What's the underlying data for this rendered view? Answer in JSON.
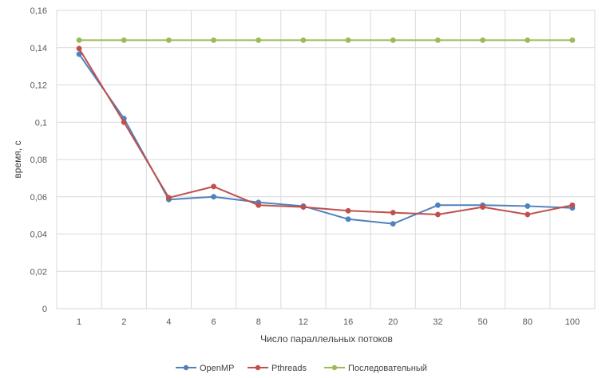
{
  "chart_data": {
    "type": "line",
    "title": "",
    "xlabel": "Число параллельных потоков",
    "ylabel": "время, с",
    "categories": [
      "1",
      "2",
      "4",
      "6",
      "8",
      "12",
      "16",
      "20",
      "32",
      "50",
      "80",
      "100"
    ],
    "ylim": [
      0,
      0.16
    ],
    "yticks": [
      0,
      0.02,
      0.04,
      0.06,
      0.08,
      0.1,
      0.12,
      0.14,
      0.16
    ],
    "ytick_labels": [
      "0",
      "0,02",
      "0,04",
      "0,06",
      "0,08",
      "0,1",
      "0,12",
      "0,14",
      "0,16"
    ],
    "grid": true,
    "legend_position": "bottom",
    "series": [
      {
        "name": "OpenMP",
        "color": "#4f81bd",
        "values": [
          0.1365,
          0.102,
          0.0585,
          0.06,
          0.057,
          0.055,
          0.048,
          0.0455,
          0.0555,
          0.0555,
          0.055,
          0.054
        ]
      },
      {
        "name": "Pthreads",
        "color": "#c0504d",
        "values": [
          0.1395,
          0.1,
          0.0595,
          0.0655,
          0.0555,
          0.0545,
          0.0525,
          0.0515,
          0.0505,
          0.0545,
          0.0505,
          0.0555
        ]
      },
      {
        "name": "Последовательный",
        "color": "#9bbb59",
        "values": [
          0.144,
          0.144,
          0.144,
          0.144,
          0.144,
          0.144,
          0.144,
          0.144,
          0.144,
          0.144,
          0.144,
          0.144
        ]
      }
    ]
  }
}
